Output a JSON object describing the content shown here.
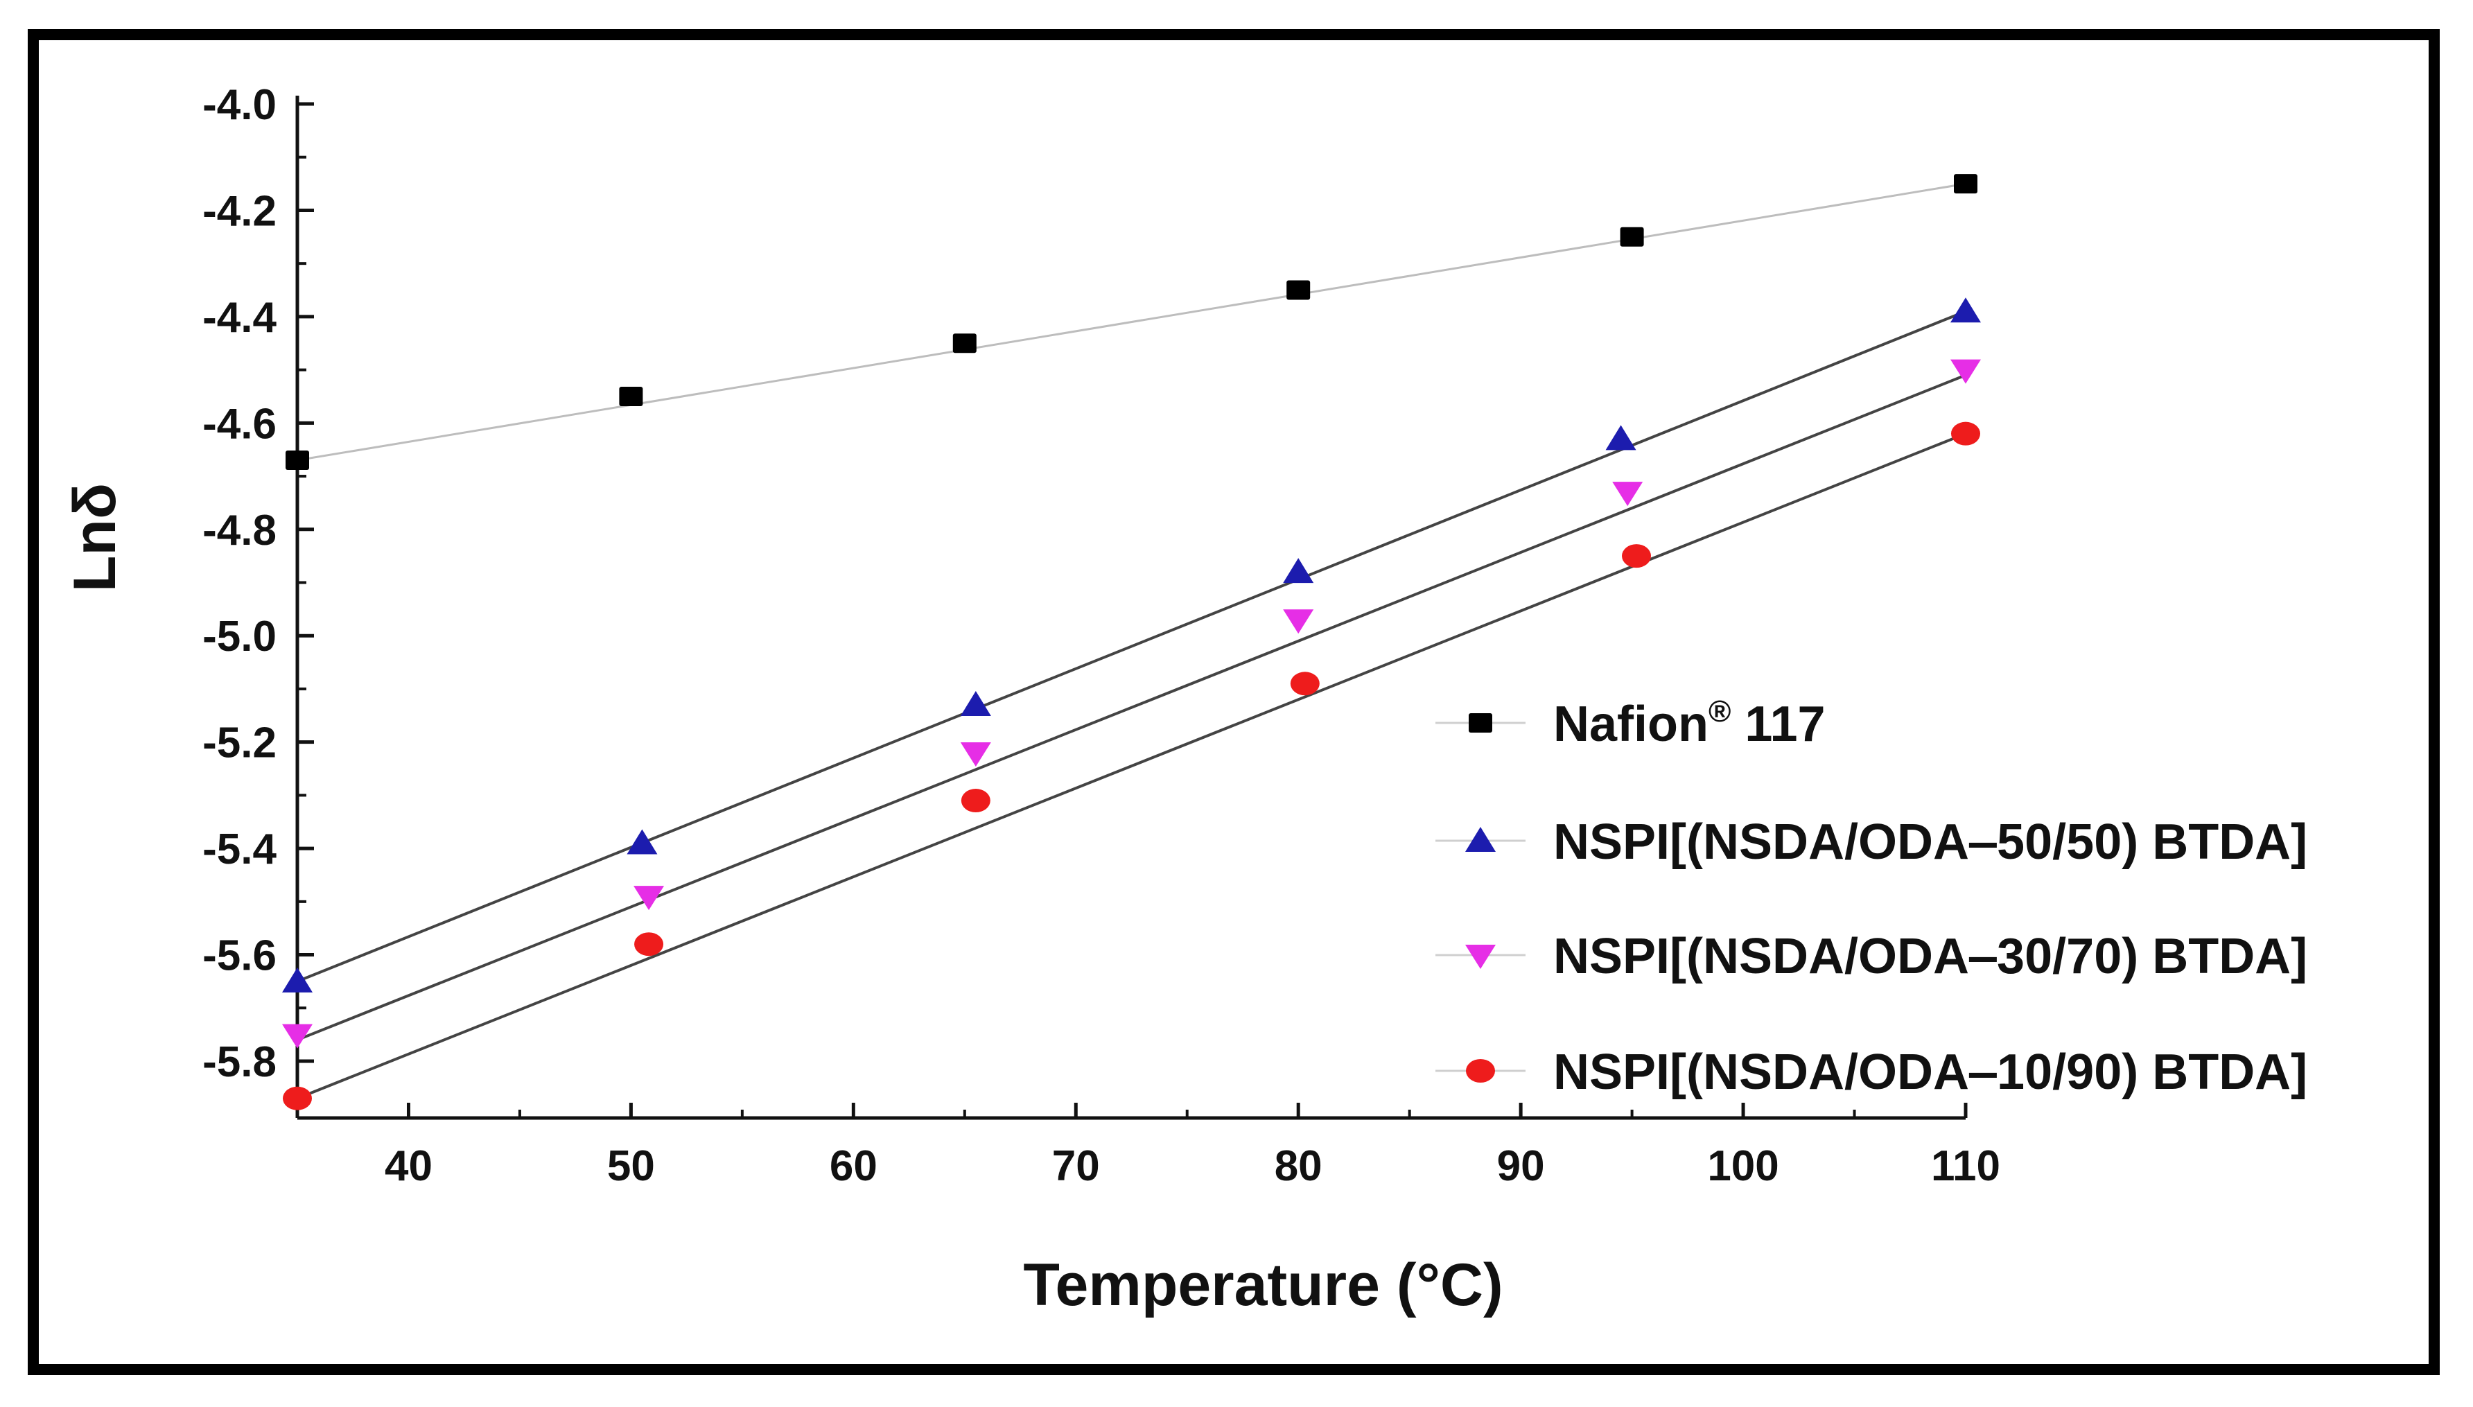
{
  "chart_data": {
    "type": "line",
    "title": "",
    "xlabel": "Temperature (°C)",
    "ylabel": "Lnδ",
    "xlim": [
      35,
      110
    ],
    "ylim": [
      -5.9,
      -4.0
    ],
    "x_ticks": [
      40,
      50,
      60,
      70,
      80,
      90,
      100,
      110
    ],
    "y_ticks": [
      -4.0,
      -4.2,
      -4.4,
      -4.6,
      -4.8,
      -5.0,
      -5.2,
      -5.4,
      -5.6,
      -5.8
    ],
    "x_tick_labels": [
      "40",
      "50",
      "60",
      "70",
      "80",
      "90",
      "100",
      "110"
    ],
    "y_tick_labels": [
      "-4.0",
      "-4.2",
      "-4.4",
      "-4.6",
      "-4.8",
      "-5.0",
      "-5.2",
      "-5.4",
      "-5.6",
      "-5.8"
    ],
    "legend_position": "center-right",
    "series": [
      {
        "name": "Nafion® 117",
        "name_main": "Nafion",
        "name_sup": "®",
        "name_tail": " 117",
        "marker": "square",
        "marker_color": "#000000",
        "line_color": "#bdbdbd",
        "x": [
          35,
          50,
          65,
          80,
          95,
          110
        ],
        "y": [
          -4.67,
          -4.55,
          -4.45,
          -4.35,
          -4.25,
          -4.15
        ],
        "fit": [
          -4.67,
          -4.15
        ]
      },
      {
        "name": "NSPI[(NSDA/ODA‒50/50) BTDA]",
        "marker": "triangle-up",
        "marker_color": "#1c1cae",
        "line_color": "#444444",
        "x": [
          35,
          50.5,
          65.5,
          80,
          94.5,
          110
        ],
        "y": [
          -5.65,
          -5.39,
          -5.13,
          -4.88,
          -4.63,
          -4.39
        ],
        "fit": [
          -5.65,
          -4.39
        ]
      },
      {
        "name": "NSPI[(NSDA/ODA‒30/70) BTDA]",
        "marker": "triangle-down",
        "marker_color": "#e62ee6",
        "line_color": "#444444",
        "x": [
          35,
          50.8,
          65.5,
          80,
          94.8,
          110
        ],
        "y": [
          -5.75,
          -5.49,
          -5.22,
          -4.97,
          -4.73,
          -4.5
        ],
        "fit": [
          -5.76,
          -4.51
        ]
      },
      {
        "name": "NSPI[(NSDA/ODA‒10/90) BTDA]",
        "marker": "circle",
        "marker_color": "#ee1c1c",
        "line_color": "#444444",
        "x": [
          35,
          50.8,
          65.5,
          80.3,
          95.2,
          110
        ],
        "y": [
          -5.87,
          -5.58,
          -5.31,
          -5.09,
          -4.85,
          -4.62
        ],
        "fit": [
          -5.87,
          -4.62
        ]
      }
    ]
  }
}
